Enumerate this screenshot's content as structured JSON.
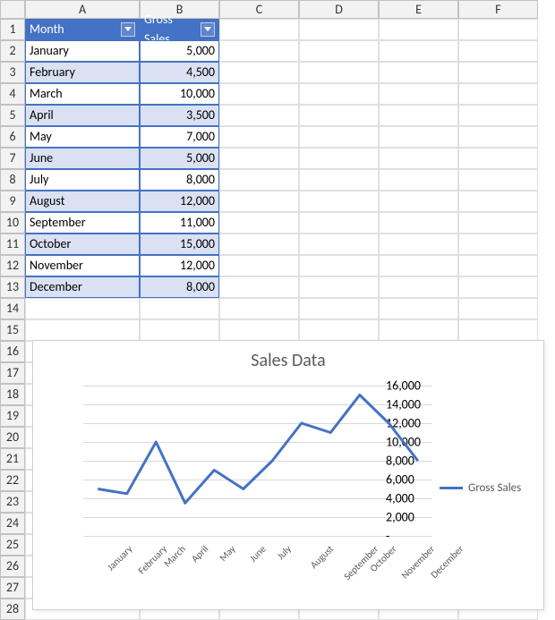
{
  "columns": [
    "A",
    "B",
    "C",
    "D",
    "E",
    "F"
  ],
  "row_count": 28,
  "table": {
    "headers": [
      "Month",
      "Gross Sales"
    ],
    "header_bg": "#4472c4",
    "header_fg": "#ffffff",
    "band_even_bg": "#d9e1f2",
    "band_odd_bg": "#ffffff",
    "border_color": "#4472c4",
    "rows": [
      {
        "month": "January",
        "sales": 5000,
        "display": "5,000"
      },
      {
        "month": "February",
        "sales": 4500,
        "display": "4,500"
      },
      {
        "month": "March",
        "sales": 10000,
        "display": "10,000"
      },
      {
        "month": "April",
        "sales": 3500,
        "display": "3,500"
      },
      {
        "month": "May",
        "sales": 7000,
        "display": "7,000"
      },
      {
        "month": "June",
        "sales": 5000,
        "display": "5,000"
      },
      {
        "month": "July",
        "sales": 8000,
        "display": "8,000"
      },
      {
        "month": "August",
        "sales": 12000,
        "display": "12,000"
      },
      {
        "month": "September",
        "sales": 11000,
        "display": "11,000"
      },
      {
        "month": "October",
        "sales": 15000,
        "display": "15,000"
      },
      {
        "month": "November",
        "sales": 12000,
        "display": "12,000"
      },
      {
        "month": "December",
        "sales": 8000,
        "display": "8,000"
      }
    ]
  },
  "chart": {
    "type": "line",
    "title": "Sales Data",
    "title_fontsize": 20,
    "title_color": "#5a5a5a",
    "series_name": "Gross Sales",
    "series_color": "#4472c4",
    "line_width": 3,
    "background_color": "#ffffff",
    "grid_color": "#d9d9d9",
    "ytick_labels": [
      "-",
      "2,000",
      "4,000",
      "6,000",
      "8,000",
      "10,000",
      "12,000",
      "14,000",
      "16,000"
    ],
    "ytick_values": [
      0,
      2000,
      4000,
      6000,
      8000,
      10000,
      12000,
      14000,
      16000
    ],
    "ylim": [
      0,
      16000
    ],
    "x_categories": [
      "January",
      "February",
      "March",
      "April",
      "May",
      "June",
      "July",
      "August",
      "September",
      "October",
      "November",
      "December"
    ],
    "values": [
      5000,
      4500,
      10000,
      3500,
      7000,
      5000,
      8000,
      12000,
      11000,
      15000,
      12000,
      8000
    ],
    "legend_position": "right",
    "label_fontsize": 12,
    "label_color": "#595959",
    "xlabel_rotation": -45
  }
}
